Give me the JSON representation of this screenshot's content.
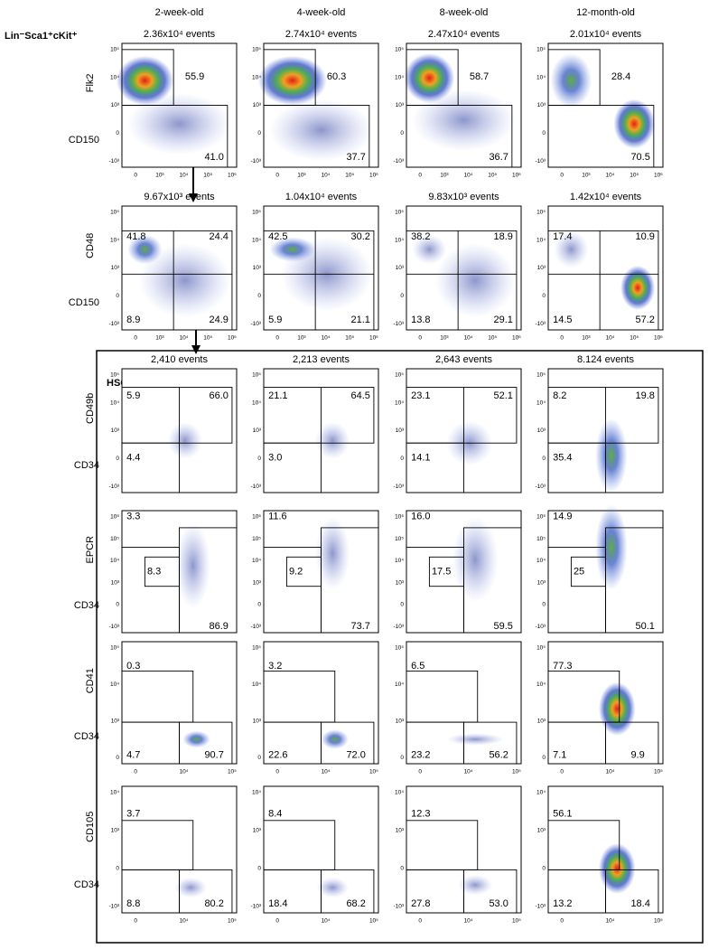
{
  "header": {
    "columns": [
      "2-week-old",
      "4-week-old",
      "8-week-old",
      "12-month-old"
    ]
  },
  "rows": [
    {
      "population": "Lin⁻Sca1⁺cKit⁺",
      "y_label": "Flk2",
      "x_label": "CD150",
      "events": [
        "2.36x10⁴ events",
        "2.74x10⁴ events",
        "2.47x10⁴ events",
        "2.01x10⁴ events"
      ],
      "gates": [
        [
          "55.9",
          "41.0"
        ],
        [
          "60.3",
          "37.7"
        ],
        [
          "58.7",
          "36.7"
        ],
        [
          "28.4",
          "70.5"
        ]
      ],
      "yticks": [
        "10⁵",
        "10⁴",
        "10³",
        "0",
        "-10³"
      ],
      "xticks": [
        "0",
        "10³",
        "10⁴",
        "10⁵",
        "10⁶"
      ]
    },
    {
      "y_label": "CD48",
      "x_label": "CD150",
      "events": [
        "9.67x10³ events",
        "1.04x10⁴ events",
        "9.83x10³ events",
        "1.42x10⁴ events"
      ],
      "gates": [
        [
          "41.8",
          "24.4",
          "8.9",
          "24.9"
        ],
        [
          "42.5",
          "30.2",
          "5.9",
          "21.1"
        ],
        [
          "38.2",
          "18.9",
          "13.8",
          "29.1"
        ],
        [
          "17.4",
          "10.9",
          "14.5",
          "57.2"
        ]
      ],
      "yticks": [
        "10⁵",
        "10⁴",
        "10³",
        "0",
        "-10³"
      ],
      "xticks": [
        "0",
        "10³",
        "10⁴",
        "10⁵",
        "10⁶"
      ]
    },
    {
      "population": "HSC-SLAM",
      "y_label": "CD49b",
      "x_label": "CD34",
      "events": [
        "2,410 events",
        "2,213 events",
        "2,643 events",
        "8.124 events"
      ],
      "gates": [
        [
          "5.9",
          "66.0",
          "4.4"
        ],
        [
          "21.1",
          "64.5",
          "3.0"
        ],
        [
          "23.1",
          "52.1",
          "14.1"
        ],
        [
          "8.2",
          "19.8",
          "35.4"
        ]
      ],
      "yticks": [
        "10⁵",
        "10⁴",
        "10³",
        "0",
        "-10³"
      ]
    },
    {
      "y_label": "EPCR",
      "x_label": "CD34",
      "gates": [
        [
          "3.3",
          "8.3",
          "86.9"
        ],
        [
          "11.6",
          "9.2",
          "73.7"
        ],
        [
          "16.0",
          "17.5",
          "59.5"
        ],
        [
          "14.9",
          "25",
          "50.1"
        ]
      ],
      "yticks": [
        "10⁶",
        "10⁵",
        "10⁴",
        "10³",
        "0",
        "-10³"
      ]
    },
    {
      "y_label": "CD41",
      "x_label": "CD34",
      "gates": [
        [
          "0.3",
          "4.7",
          "90.7"
        ],
        [
          "3.2",
          "22.6",
          "72.0"
        ],
        [
          "6.5",
          "23.2",
          "56.2"
        ],
        [
          "77.3",
          "7.1",
          "9.9"
        ]
      ],
      "yticks": [
        "10⁵",
        "10⁴",
        "10³",
        "0"
      ],
      "xticks": [
        "0",
        "10⁴",
        "10⁵"
      ]
    },
    {
      "y_label": "CD105",
      "x_label": "CD34",
      "gates": [
        [
          "3.7",
          "8.8",
          "80.2"
        ],
        [
          "8.4",
          "18.4",
          "68.2"
        ],
        [
          "12.3",
          "27.8",
          "53.0"
        ],
        [
          "56.1",
          "13.2",
          "18.4"
        ]
      ],
      "yticks": [
        "10⁴",
        "10³",
        "0",
        "-10³"
      ],
      "xticks": [
        "0",
        "10⁴",
        "10⁵"
      ]
    }
  ]
}
